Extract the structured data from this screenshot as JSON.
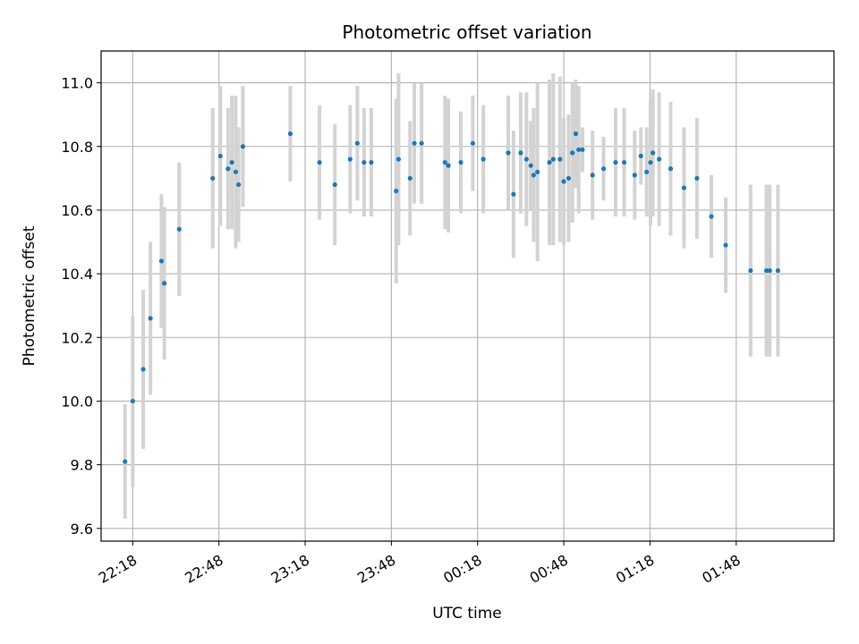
{
  "chart_data": {
    "type": "scatter",
    "title": "Photometric offset variation",
    "xlabel": "UTC time",
    "ylabel": "Photometric offset",
    "x_unit": "time of day (UTC, HH:MM)",
    "xlim": [
      "22:07",
      "02:22"
    ],
    "ylim": [
      9.56,
      11.1
    ],
    "x_ticks": [
      "22:18",
      "22:48",
      "23:18",
      "23:48",
      "00:18",
      "00:48",
      "01:18",
      "01:48"
    ],
    "y_ticks": [
      "9.6",
      "9.8",
      "10.0",
      "10.2",
      "10.4",
      "10.6",
      "10.8",
      "11.0"
    ],
    "grid": true,
    "error_bars": true,
    "colors": {
      "marker": "#1f77b4",
      "errorbar": "#d3d3d3",
      "grid": "#b0b0b0"
    },
    "series": [
      {
        "x": [
          "22:15:20",
          "22:18:00",
          "22:21:40",
          "22:24:10",
          "22:28:00",
          "22:29:00",
          "22:34:10",
          "22:45:50",
          "22:48:30",
          "22:51:10",
          "22:52:30",
          "22:53:50",
          "22:54:50",
          "22:56:20",
          "23:12:50",
          "23:23:00",
          "23:28:20",
          "23:33:40",
          "23:36:10",
          "23:38:30",
          "23:41:00",
          "23:49:40",
          "23:50:30",
          "23:54:30",
          "23:56:00",
          "23:58:30",
          "00:06:40",
          "00:07:50",
          "00:12:10",
          "00:16:20",
          "00:20:00",
          "00:28:40",
          "00:30:30",
          "00:33:00",
          "00:35:00",
          "00:36:30",
          "00:37:30",
          "00:38:50",
          "00:43:00",
          "00:44:20",
          "00:46:40",
          "00:48:00",
          "00:49:40",
          "00:51:00",
          "00:52:10",
          "00:53:10",
          "00:54:30",
          "00:58:00",
          "01:01:50",
          "01:06:00",
          "01:09:00",
          "01:12:40",
          "01:14:50",
          "01:16:50",
          "01:18:10",
          "01:19:00",
          "01:21:10",
          "01:25:10",
          "01:29:50",
          "01:34:20",
          "01:39:20",
          "01:44:20",
          "01:53:00",
          "01:58:30",
          "01:59:40",
          "02:02:30"
        ],
        "y": [
          9.81,
          10.0,
          10.1,
          10.26,
          10.44,
          10.37,
          10.54,
          10.7,
          10.77,
          10.73,
          10.75,
          10.72,
          10.68,
          10.8,
          10.84,
          10.75,
          10.68,
          10.76,
          10.81,
          10.75,
          10.75,
          10.66,
          10.76,
          10.7,
          10.81,
          10.81,
          10.75,
          10.74,
          10.75,
          10.81,
          10.76,
          10.78,
          10.65,
          10.78,
          10.76,
          10.74,
          10.71,
          10.72,
          10.75,
          10.76,
          10.76,
          10.69,
          10.7,
          10.78,
          10.84,
          10.79,
          10.79,
          10.71,
          10.73,
          10.75,
          10.75,
          10.71,
          10.77,
          10.72,
          10.75,
          10.78,
          10.76,
          10.73,
          10.67,
          10.7,
          10.58,
          10.49,
          10.41,
          10.41,
          10.41,
          10.41
        ],
        "yerr": [
          0.18,
          0.27,
          0.25,
          0.24,
          0.21,
          0.24,
          0.21,
          0.22,
          0.22,
          0.19,
          0.21,
          0.24,
          0.18,
          0.19,
          0.15,
          0.18,
          0.19,
          0.17,
          0.18,
          0.17,
          0.17,
          0.29,
          0.27,
          0.18,
          0.19,
          0.19,
          0.21,
          0.21,
          0.16,
          0.15,
          0.17,
          0.18,
          0.2,
          0.19,
          0.21,
          0.14,
          0.21,
          0.28,
          0.26,
          0.27,
          0.26,
          0.2,
          0.2,
          0.22,
          0.17,
          0.2,
          0.07,
          0.14,
          0.1,
          0.17,
          0.17,
          0.14,
          0.09,
          0.14,
          0.2,
          0.2,
          0.21,
          0.21,
          0.19,
          0.19,
          0.13,
          0.15,
          0.27,
          0.27,
          0.27,
          0.27
        ]
      }
    ]
  }
}
